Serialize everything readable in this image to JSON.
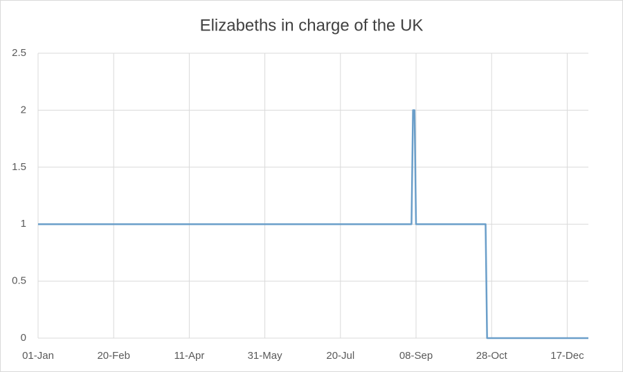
{
  "chart_data": {
    "type": "line",
    "title": "Elizabeths in charge of the UK",
    "x": [
      0,
      247,
      248,
      249,
      250,
      296,
      297,
      364
    ],
    "series": [
      {
        "name": "Elizabeths",
        "color": "#6a9ec9",
        "values": [
          1,
          1,
          2,
          2,
          1,
          1,
          0,
          0
        ]
      }
    ],
    "xlim": [
      0,
      364
    ],
    "xticks": [
      {
        "value": 0,
        "label": "01-Jan"
      },
      {
        "value": 50,
        "label": "20-Feb"
      },
      {
        "value": 100,
        "label": "11-Apr"
      },
      {
        "value": 150,
        "label": "31-May"
      },
      {
        "value": 200,
        "label": "20-Jul"
      },
      {
        "value": 250,
        "label": "08-Sep"
      },
      {
        "value": 300,
        "label": "28-Oct"
      },
      {
        "value": 350,
        "label": "17-Dec"
      }
    ],
    "ylim": [
      0,
      2.5
    ],
    "yticks": [
      0,
      0.5,
      1,
      1.5,
      2,
      2.5
    ],
    "grid": true
  }
}
